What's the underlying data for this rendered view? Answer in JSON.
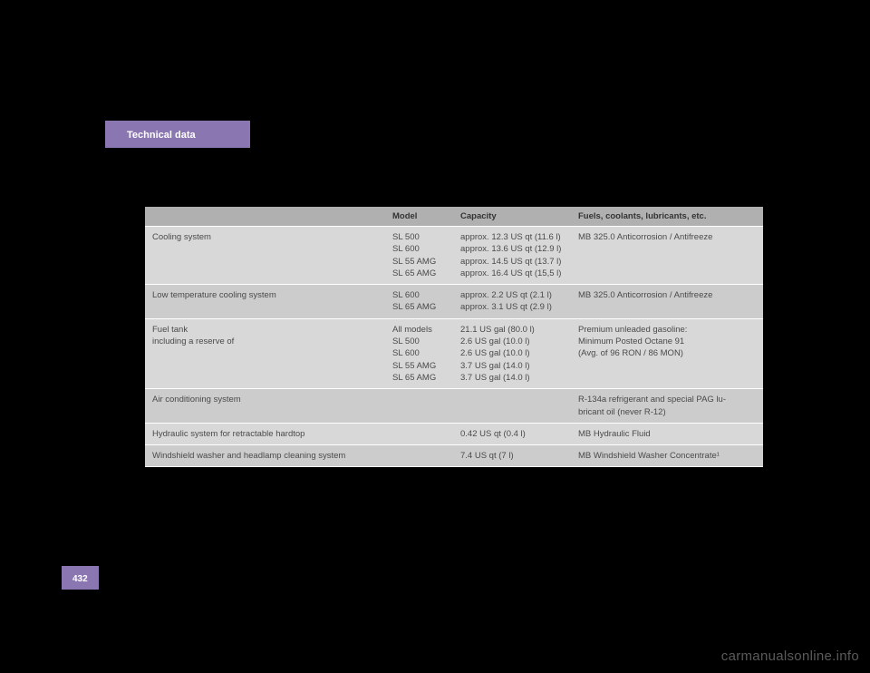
{
  "header": {
    "section_title": "Technical data"
  },
  "table": {
    "headers": {
      "model": "Model",
      "capacity": "Capacity",
      "fuels": "Fuels, coolants, lubricants, etc."
    },
    "rows": {
      "cooling": {
        "system": "Cooling system",
        "model": "SL 500\nSL 600\nSL 55 AMG\nSL 65 AMG",
        "capacity": "approx. 12.3 US qt (11.6 l)\napprox. 13.6 US qt (12.9 l)\napprox. 14.5 US qt (13.7 l)\napprox. 16.4 US qt (15,5 l)",
        "fuels": "MB 325.0 Anticorrosion / Antifreeze"
      },
      "low_temp": {
        "system": "Low temperature cooling system",
        "model": "SL 600\nSL 65 AMG",
        "capacity": "approx. 2.2 US qt (2.1 l)\napprox. 3.1 US qt (2.9 l)",
        "fuels": "MB 325.0 Anticorrosion / Antifreeze"
      },
      "fuel_tank": {
        "system": "Fuel tank\nincluding a reserve of",
        "model": "All models\nSL 500\nSL 600\nSL 55 AMG\nSL 65 AMG",
        "capacity": "21.1 US gal (80.0 l)\n2.6 US gal (10.0 l)\n2.6 US gal (10.0 l)\n3.7 US gal (14.0 l)\n3.7 US gal (14.0 l)",
        "fuels": "Premium unleaded gasoline:\nMinimum Posted Octane 91\n(Avg. of 96 RON / 86 MON)"
      },
      "air_cond": {
        "system": "Air conditioning system",
        "model": "",
        "capacity": "",
        "fuels": "R-134a refrigerant and special PAG lu-\nbricant oil (never R-12)"
      },
      "hydraulic": {
        "system": "Hydraulic system for retractable hardtop",
        "model": "",
        "capacity": "0.42 US qt (0.4 l)",
        "fuels": "MB Hydraulic Fluid"
      },
      "windshield": {
        "system": "Windshield washer and headlamp cleaning system",
        "model": "",
        "capacity": "7.4 US qt (7 l)",
        "fuels": "MB Windshield Washer Concentrate¹"
      }
    }
  },
  "page_number": "432",
  "watermark": "carmanualsonline.info"
}
